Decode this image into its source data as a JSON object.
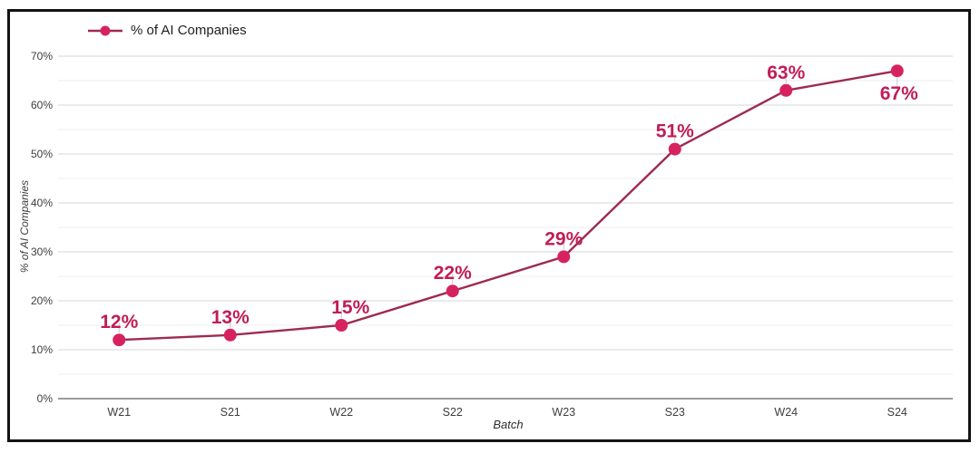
{
  "chart_data": {
    "type": "line",
    "title": "",
    "legend": "% of AI Companies",
    "legend_position": "top-left",
    "xlabel": "Batch",
    "ylabel": "% of AI Companies",
    "categories": [
      "W21",
      "S21",
      "W22",
      "S22",
      "W23",
      "S23",
      "W24",
      "S24"
    ],
    "series": [
      {
        "name": "% of AI Companies",
        "values": [
          12,
          13,
          15,
          22,
          29,
          51,
          63,
          67
        ]
      }
    ],
    "data_labels": [
      "12%",
      "13%",
      "15%",
      "22%",
      "29%",
      "51%",
      "63%",
      "67%"
    ],
    "label_sides": [
      "above",
      "above",
      "above-right",
      "above",
      "above",
      "above",
      "above",
      "below"
    ],
    "ylim": [
      0,
      70
    ],
    "ytick_step": 10,
    "ytick_minor_step": 5,
    "ytick_suffix": "%",
    "grid": "horizontal-major-and-minor",
    "colors": {
      "line": "#9d2b4f",
      "marker": "#d62360",
      "data_label": "#c01d57",
      "grid_major": "#d7d7d7",
      "grid_minor": "#ededed",
      "axis_line": "#7c7c7c",
      "tick_text": "#3d3d3d",
      "connector": "#c6c6c6",
      "frame_border": "#131313",
      "background": "#ffffff"
    }
  }
}
